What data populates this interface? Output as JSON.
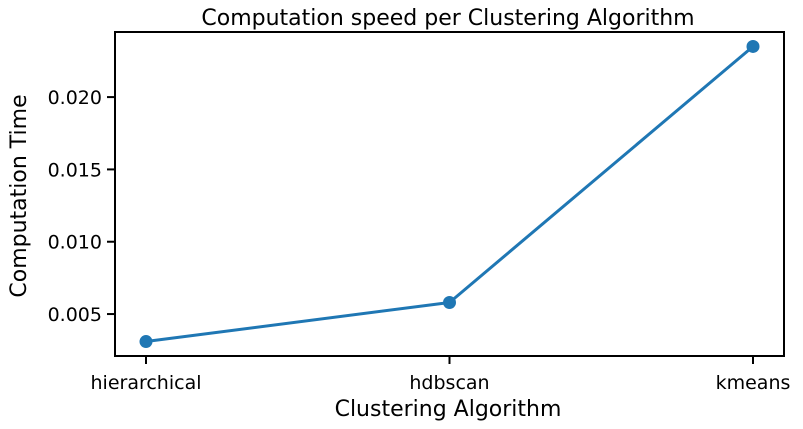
{
  "chart_data": {
    "type": "line",
    "title": "Computation speed per Clustering Algorithm",
    "xlabel": "Clustering Algorithm",
    "ylabel": "Computation Time",
    "categories": [
      "hierarchical",
      "hdbscan",
      "kmeans"
    ],
    "series": [
      {
        "values": [
          0.0031,
          0.0058,
          0.0235
        ],
        "color": "#1f77b4"
      }
    ],
    "ylim": [
      0.0021,
      0.0245
    ],
    "yticks": [
      0.005,
      0.01,
      0.015,
      0.02
    ],
    "ytick_labels": [
      "0.005",
      "0.010",
      "0.015",
      "0.020"
    ],
    "grid": false,
    "legend": false
  }
}
